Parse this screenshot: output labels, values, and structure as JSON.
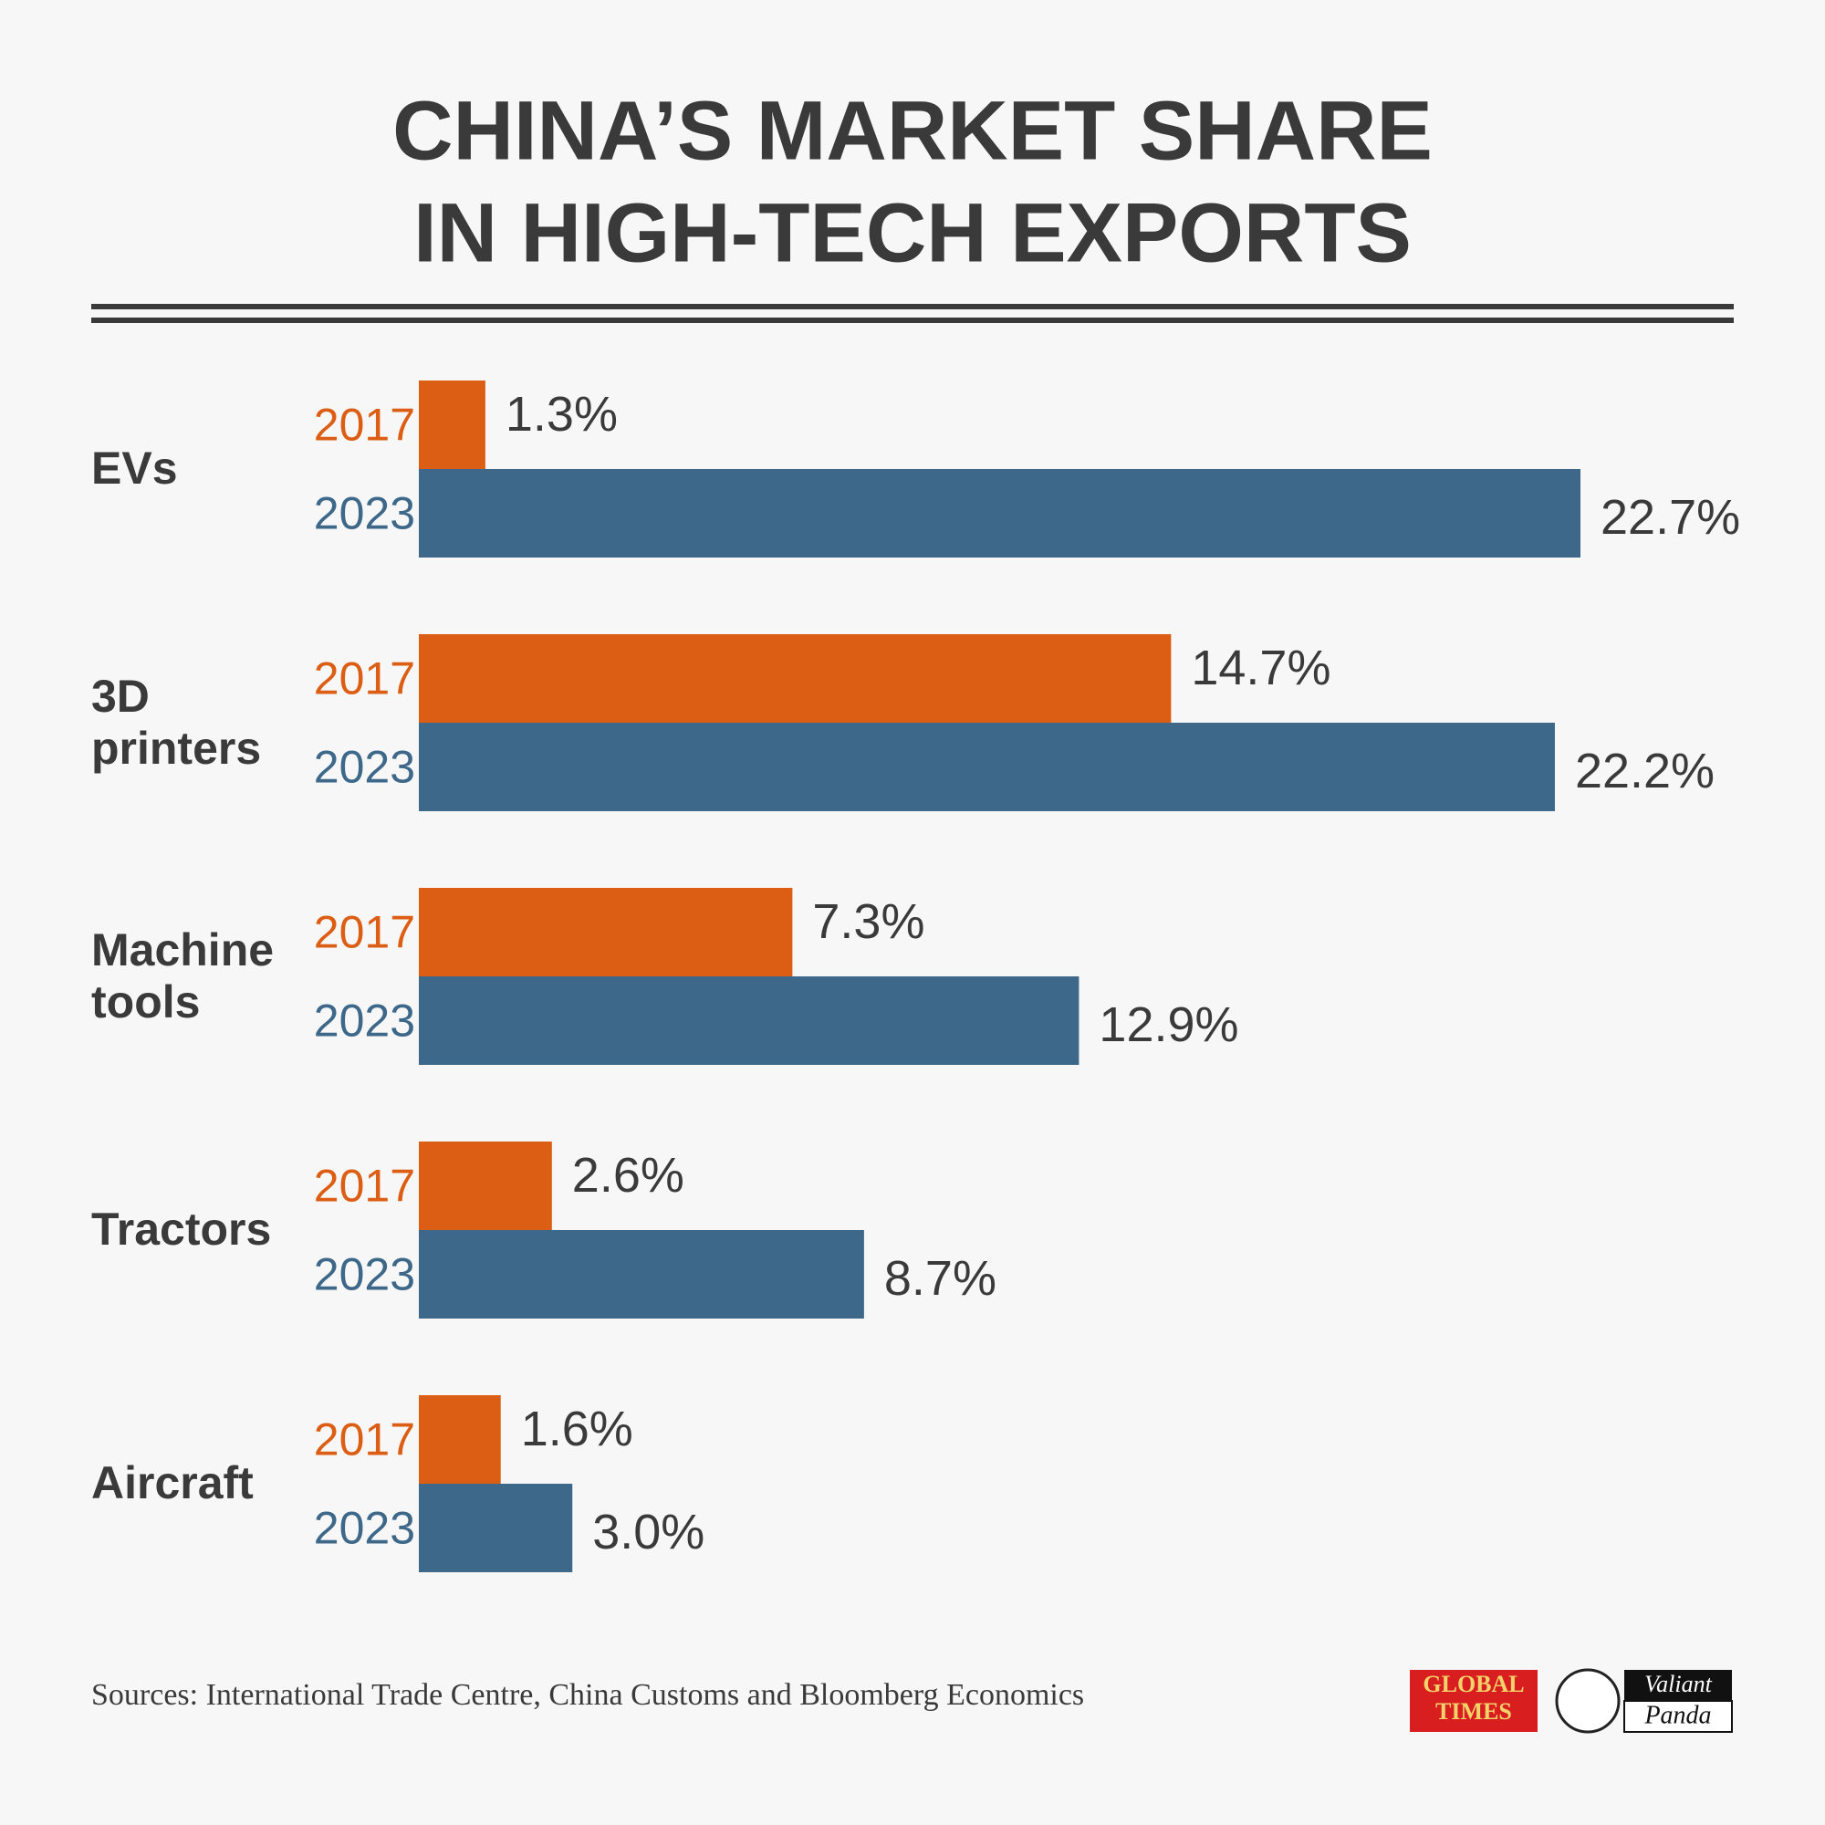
{
  "chart_data": {
    "type": "bar",
    "orientation": "horizontal",
    "title": [
      "CHINA’S MARKET SHARE",
      "IN HIGH-TECH EXPORTS"
    ],
    "categories": [
      "EVs",
      "3D printers",
      "Machine tools",
      "Tractors",
      "Aircraft"
    ],
    "series": [
      {
        "name": "2017",
        "color": "#dc5e14",
        "values": [
          1.3,
          14.7,
          7.3,
          2.6,
          1.6
        ],
        "value_labels": [
          "1.3%",
          "14.7%",
          "7.3%",
          "2.6%",
          "1.6%"
        ]
      },
      {
        "name": "2023",
        "color": "#3e6889",
        "values": [
          22.7,
          22.2,
          12.9,
          8.7,
          3.0
        ],
        "value_labels": [
          "22.7%",
          "22.2%",
          "12.9%",
          "8.7%",
          "3.0%"
        ]
      }
    ],
    "source": "Sources: International Trade Centre, China Customs and Bloomberg Economics",
    "logos": [
      "GLOBAL",
      "TIMES",
      "Valiant",
      "Panda"
    ]
  }
}
